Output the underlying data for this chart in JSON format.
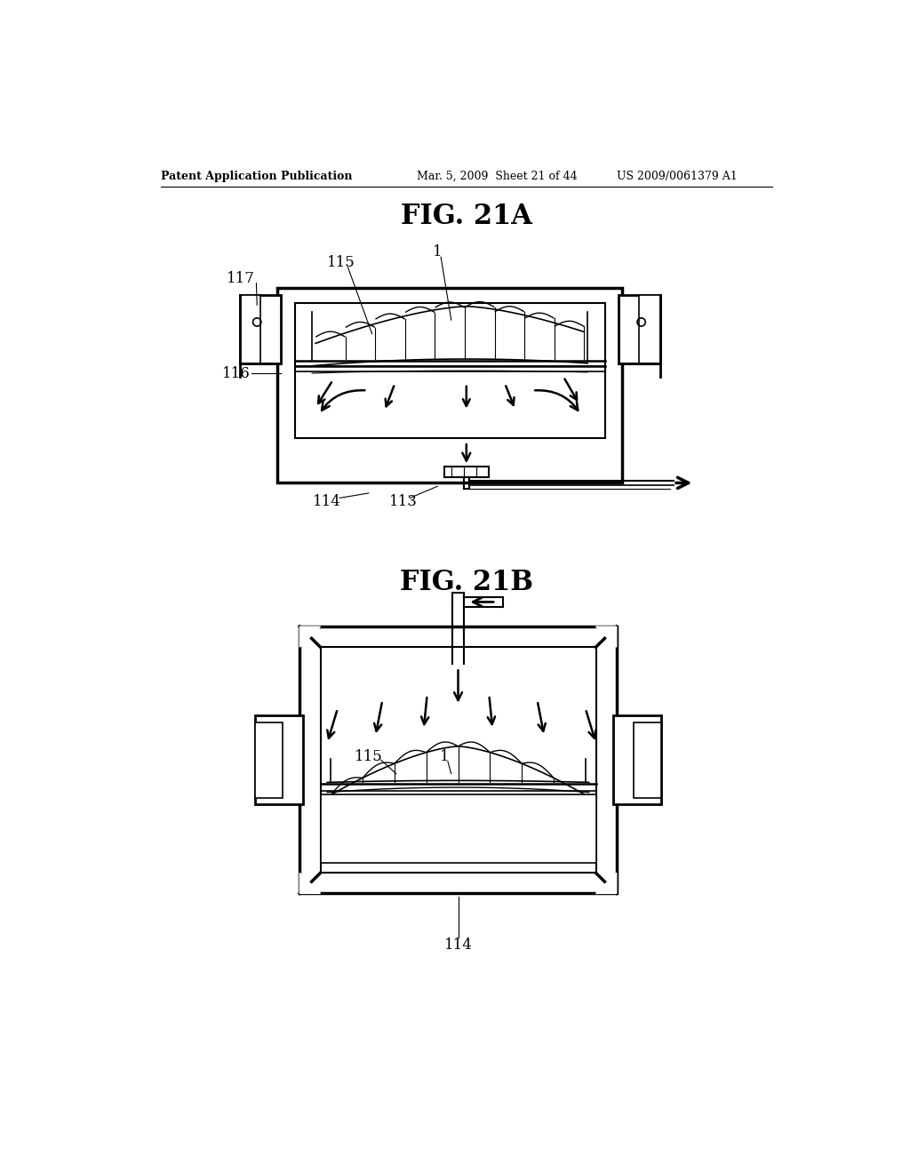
{
  "bg_color": "#ffffff",
  "header_left": "Patent Application Publication",
  "header_mid": "Mar. 5, 2009  Sheet 21 of 44",
  "header_right": "US 2009/0061379 A1",
  "fig_a_title": "FIG. 21A",
  "fig_b_title": "FIG. 21B",
  "lw_thick": 2.5,
  "lw_med": 1.8,
  "lw_thin": 1.2,
  "lw_hair": 0.8
}
